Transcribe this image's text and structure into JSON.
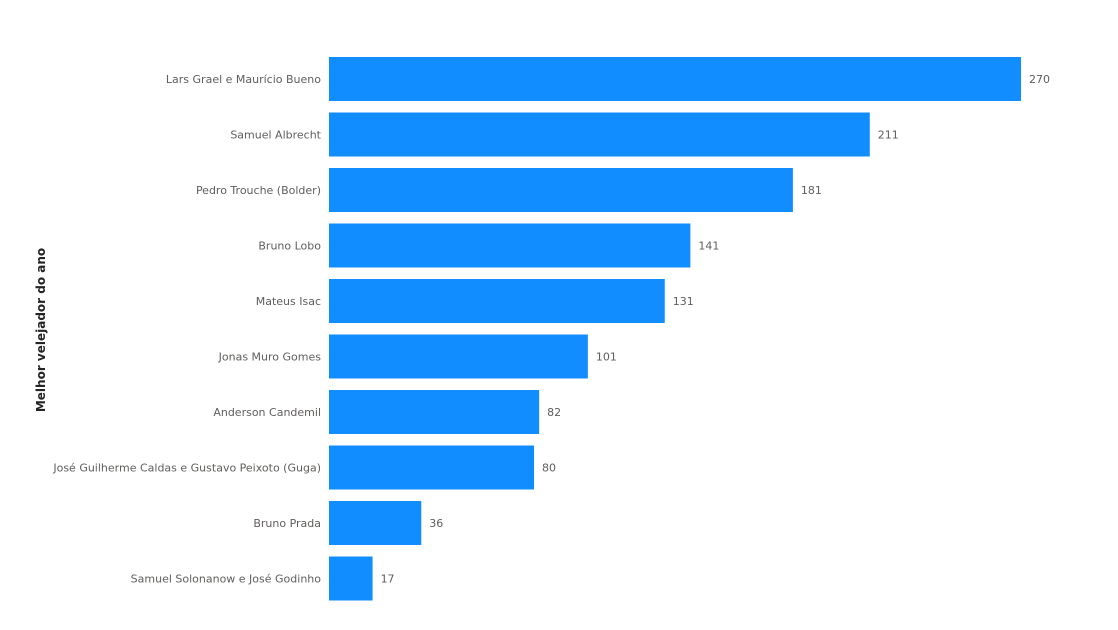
{
  "chart_data": {
    "type": "bar",
    "orientation": "horizontal",
    "title": "",
    "xlabel": "",
    "ylabel": "Melhor velejador do ano",
    "categories": [
      "Lars Grael e Maurício Bueno",
      "Samuel Albrecht",
      "Pedro Trouche (Bolder)",
      "Bruno Lobo",
      "Mateus Isac",
      "Jonas Muro Gomes",
      "Anderson Candemil",
      "José Guilherme Caldas e Gustavo Peixoto (Guga)",
      "Bruno Prada",
      "Samuel Solonanow e José Godinho"
    ],
    "values": [
      270,
      211,
      181,
      141,
      131,
      101,
      82,
      80,
      36,
      17
    ],
    "xlim": [
      0,
      270
    ],
    "grid": false,
    "data_labels": true,
    "bar_color": "#118DFF"
  }
}
